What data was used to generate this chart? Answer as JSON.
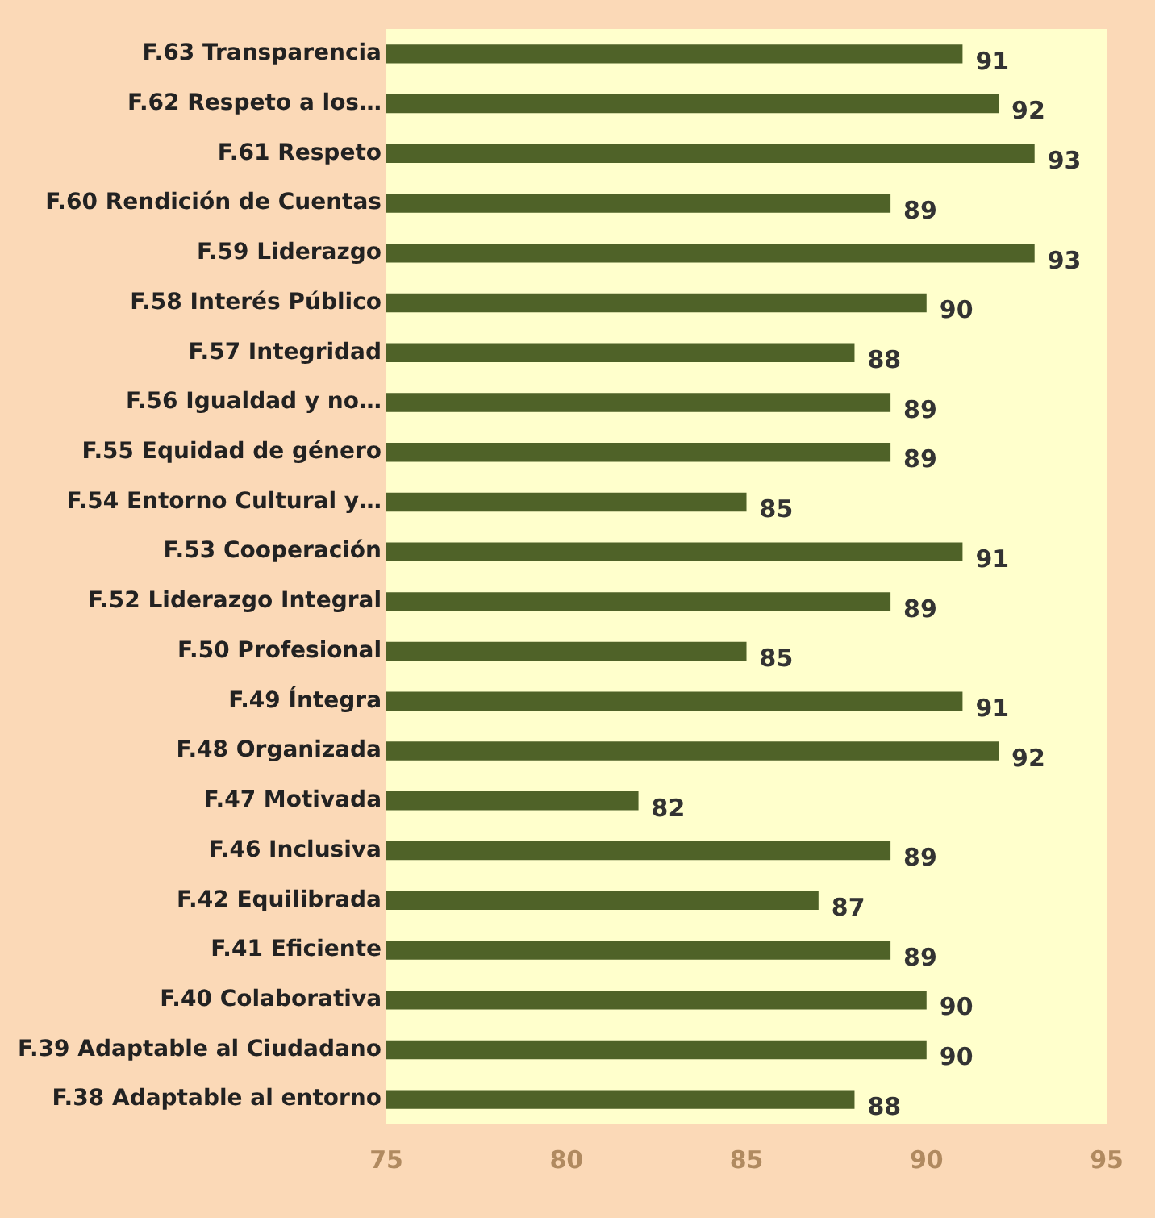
{
  "chart_data": {
    "type": "bar",
    "orientation": "horizontal",
    "categories": [
      "F.63 Transparencia",
      "F.62 Respeto a los…",
      "F.61 Respeto",
      "F.60 Rendición de Cuentas",
      "F.59 Liderazgo",
      "F.58 Interés Público",
      "F.57 Integridad",
      "F.56 Igualdad y no…",
      "F.55 Equidad de género",
      "F.54 Entorno Cultural y…",
      "F.53 Cooperación",
      "F.52 Liderazgo Integral",
      "F.50 Profesional",
      "F.49 Íntegra",
      "F.48 Organizada",
      "F.47 Motivada",
      "F.46 Inclusiva",
      "F.42 Equilibrada",
      "F.41 Eficiente",
      "F.40 Colaborativa",
      "F.39 Adaptable al Ciudadano",
      "F.38 Adaptable al entorno"
    ],
    "values": [
      91,
      92,
      93,
      89,
      93,
      90,
      88,
      89,
      89,
      85,
      91,
      89,
      85,
      91,
      92,
      82,
      89,
      87,
      89,
      90,
      90,
      88
    ],
    "color": "#4f6228",
    "xlim": [
      75,
      95
    ],
    "xticks": [
      75,
      80,
      85,
      90,
      95
    ],
    "data_labels": true,
    "grid": false,
    "legend": false
  }
}
